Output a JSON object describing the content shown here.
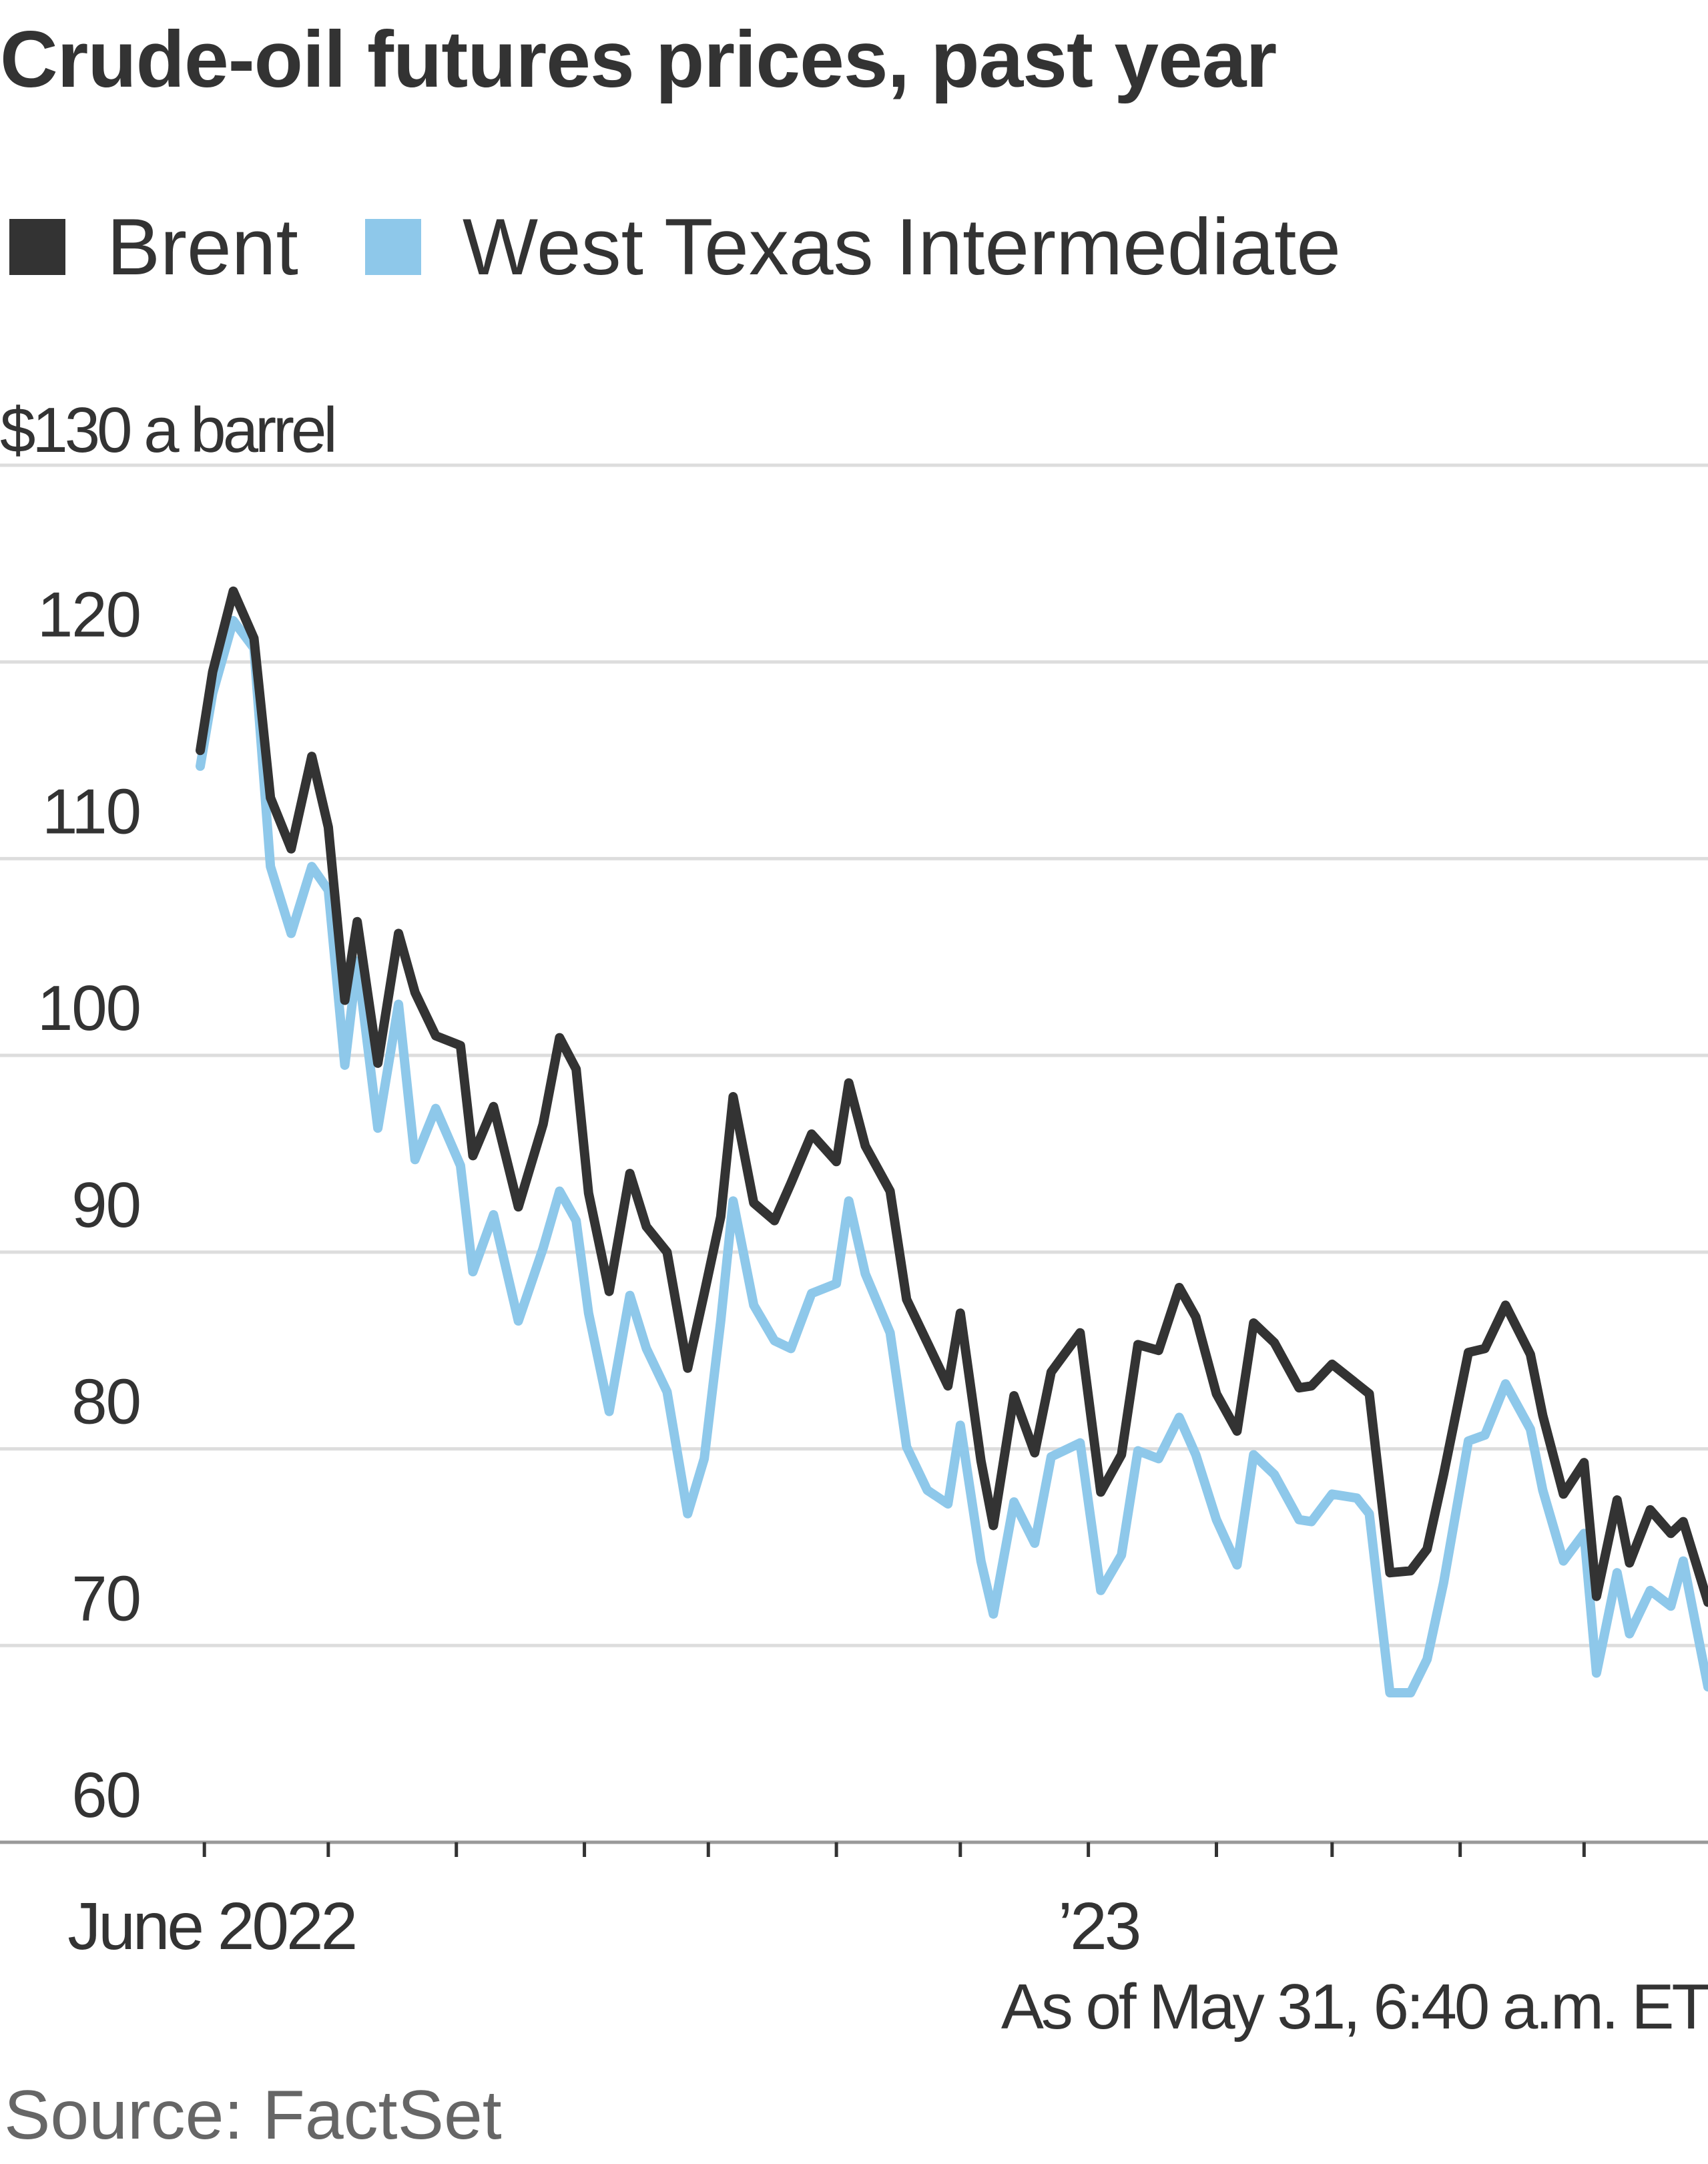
{
  "chart_data": {
    "type": "line",
    "title": "Crude-oil futures prices, past year",
    "ylabel": "$130 a barrel",
    "ylim": [
      60,
      130
    ],
    "yticks": [
      60,
      70,
      80,
      90,
      100,
      110,
      120,
      130
    ],
    "ytick_labels": [
      "60",
      "70",
      "80",
      "90",
      "100",
      "110",
      "120",
      "$130 a barrel"
    ],
    "xlim": [
      "2022-05-31",
      "2023-05-31"
    ],
    "x_labels": [
      {
        "date": "2022-06-01",
        "label": "June 2022"
      },
      {
        "date": "2023-01-01",
        "label": "’23"
      }
    ],
    "month_ticks": [
      "2022-06-01",
      "2022-07-01",
      "2022-08-01",
      "2022-09-01",
      "2022-10-01",
      "2022-11-01",
      "2022-12-01",
      "2023-01-01",
      "2023-02-01",
      "2023-03-01",
      "2023-04-01",
      "2023-05-01"
    ],
    "grid": true,
    "legend_position": "top-left",
    "series": [
      {
        "name": "Brent",
        "color": "#333333",
        "points": [
          [
            "2022-05-31",
            115.5
          ],
          [
            "2022-06-03",
            119.5
          ],
          [
            "2022-06-08",
            123.6
          ],
          [
            "2022-06-13",
            121.2
          ],
          [
            "2022-06-17",
            113.1
          ],
          [
            "2022-06-22",
            110.5
          ],
          [
            "2022-06-27",
            115.2
          ],
          [
            "2022-07-01",
            111.6
          ],
          [
            "2022-07-05",
            102.8
          ],
          [
            "2022-07-08",
            106.8
          ],
          [
            "2022-07-13",
            99.6
          ],
          [
            "2022-07-18",
            106.2
          ],
          [
            "2022-07-22",
            103.2
          ],
          [
            "2022-07-27",
            101.0
          ],
          [
            "2022-08-02",
            100.5
          ],
          [
            "2022-08-05",
            94.9
          ],
          [
            "2022-08-10",
            97.4
          ],
          [
            "2022-08-16",
            92.3
          ],
          [
            "2022-08-22",
            96.5
          ],
          [
            "2022-08-26",
            100.9
          ],
          [
            "2022-08-30",
            99.3
          ],
          [
            "2022-09-02",
            93.0
          ],
          [
            "2022-09-07",
            88.0
          ],
          [
            "2022-09-12",
            94.0
          ],
          [
            "2022-09-16",
            91.3
          ],
          [
            "2022-09-21",
            90.0
          ],
          [
            "2022-09-26",
            84.1
          ],
          [
            "2022-09-30",
            87.9
          ],
          [
            "2022-10-04",
            91.8
          ],
          [
            "2022-10-07",
            97.9
          ],
          [
            "2022-10-12",
            92.5
          ],
          [
            "2022-10-17",
            91.6
          ],
          [
            "2022-10-21",
            93.5
          ],
          [
            "2022-10-26",
            96.0
          ],
          [
            "2022-11-01",
            94.6
          ],
          [
            "2022-11-04",
            98.6
          ],
          [
            "2022-11-08",
            95.4
          ],
          [
            "2022-11-14",
            93.1
          ],
          [
            "2022-11-18",
            87.6
          ],
          [
            "2022-11-23",
            85.4
          ],
          [
            "2022-11-28",
            83.2
          ],
          [
            "2022-12-01",
            86.9
          ],
          [
            "2022-12-06",
            79.4
          ],
          [
            "2022-12-09",
            76.1
          ],
          [
            "2022-12-14",
            82.7
          ],
          [
            "2022-12-19",
            79.8
          ],
          [
            "2022-12-23",
            83.9
          ],
          [
            "2022-12-30",
            85.9
          ],
          [
            "2023-01-04",
            77.8
          ],
          [
            "2023-01-09",
            79.7
          ],
          [
            "2023-01-13",
            85.3
          ],
          [
            "2023-01-18",
            85.0
          ],
          [
            "2023-01-23",
            88.2
          ],
          [
            "2023-01-27",
            86.7
          ],
          [
            "2023-02-01",
            82.8
          ],
          [
            "2023-02-06",
            80.9
          ],
          [
            "2023-02-10",
            86.4
          ],
          [
            "2023-02-15",
            85.4
          ],
          [
            "2023-02-21",
            83.1
          ],
          [
            "2023-02-24",
            83.2
          ],
          [
            "2023-03-01",
            84.3
          ],
          [
            "2023-03-07",
            83.3
          ],
          [
            "2023-03-10",
            82.8
          ],
          [
            "2023-03-15",
            73.7
          ],
          [
            "2023-03-20",
            73.8
          ],
          [
            "2023-03-24",
            74.9
          ],
          [
            "2023-03-28",
            78.7
          ],
          [
            "2023-04-03",
            84.9
          ],
          [
            "2023-04-07",
            85.1
          ],
          [
            "2023-04-12",
            87.3
          ],
          [
            "2023-04-18",
            84.8
          ],
          [
            "2023-04-21",
            81.7
          ],
          [
            "2023-04-26",
            77.7
          ],
          [
            "2023-05-01",
            79.3
          ],
          [
            "2023-05-04",
            72.5
          ],
          [
            "2023-05-09",
            77.4
          ],
          [
            "2023-05-12",
            74.2
          ],
          [
            "2023-05-17",
            76.9
          ],
          [
            "2023-05-22",
            75.7
          ],
          [
            "2023-05-25",
            76.3
          ],
          [
            "2023-05-31",
            72.2
          ]
        ]
      },
      {
        "name": "West Texas Intermediate",
        "color": "#8ec8ea",
        "points": [
          [
            "2022-05-31",
            114.7
          ],
          [
            "2022-06-03",
            118.4
          ],
          [
            "2022-06-08",
            122.1
          ],
          [
            "2022-06-13",
            120.7
          ],
          [
            "2022-06-17",
            109.6
          ],
          [
            "2022-06-22",
            106.2
          ],
          [
            "2022-06-27",
            109.6
          ],
          [
            "2022-07-01",
            108.4
          ],
          [
            "2022-07-05",
            99.5
          ],
          [
            "2022-07-08",
            104.8
          ],
          [
            "2022-07-13",
            96.3
          ],
          [
            "2022-07-18",
            102.6
          ],
          [
            "2022-07-22",
            94.7
          ],
          [
            "2022-07-27",
            97.3
          ],
          [
            "2022-08-02",
            94.4
          ],
          [
            "2022-08-05",
            89.0
          ],
          [
            "2022-08-10",
            91.9
          ],
          [
            "2022-08-16",
            86.5
          ],
          [
            "2022-08-22",
            90.2
          ],
          [
            "2022-08-26",
            93.1
          ],
          [
            "2022-08-30",
            91.6
          ],
          [
            "2022-09-02",
            86.9
          ],
          [
            "2022-09-07",
            81.9
          ],
          [
            "2022-09-12",
            87.8
          ],
          [
            "2022-09-16",
            85.1
          ],
          [
            "2022-09-21",
            82.9
          ],
          [
            "2022-09-26",
            76.7
          ],
          [
            "2022-09-30",
            79.5
          ],
          [
            "2022-10-04",
            86.5
          ],
          [
            "2022-10-07",
            92.6
          ],
          [
            "2022-10-12",
            87.3
          ],
          [
            "2022-10-17",
            85.5
          ],
          [
            "2022-10-21",
            85.1
          ],
          [
            "2022-10-26",
            87.9
          ],
          [
            "2022-11-01",
            88.4
          ],
          [
            "2022-11-04",
            92.6
          ],
          [
            "2022-11-08",
            88.9
          ],
          [
            "2022-11-14",
            85.9
          ],
          [
            "2022-11-18",
            80.1
          ],
          [
            "2022-11-23",
            77.9
          ],
          [
            "2022-11-28",
            77.2
          ],
          [
            "2022-12-01",
            81.2
          ],
          [
            "2022-12-06",
            74.3
          ],
          [
            "2022-12-09",
            71.6
          ],
          [
            "2022-12-14",
            77.3
          ],
          [
            "2022-12-19",
            75.2
          ],
          [
            "2022-12-23",
            79.6
          ],
          [
            "2022-12-30",
            80.3
          ],
          [
            "2023-01-04",
            72.8
          ],
          [
            "2023-01-09",
            74.6
          ],
          [
            "2023-01-13",
            79.9
          ],
          [
            "2023-01-18",
            79.5
          ],
          [
            "2023-01-23",
            81.6
          ],
          [
            "2023-01-27",
            79.7
          ],
          [
            "2023-02-01",
            76.4
          ],
          [
            "2023-02-06",
            74.1
          ],
          [
            "2023-02-10",
            79.7
          ],
          [
            "2023-02-15",
            78.7
          ],
          [
            "2023-02-21",
            76.4
          ],
          [
            "2023-02-24",
            76.3
          ],
          [
            "2023-03-01",
            77.7
          ],
          [
            "2023-03-07",
            77.5
          ],
          [
            "2023-03-10",
            76.7
          ],
          [
            "2023-03-15",
            67.6
          ],
          [
            "2023-03-20",
            67.6
          ],
          [
            "2023-03-24",
            69.3
          ],
          [
            "2023-03-28",
            73.2
          ],
          [
            "2023-04-03",
            80.4
          ],
          [
            "2023-04-07",
            80.7
          ],
          [
            "2023-04-12",
            83.3
          ],
          [
            "2023-04-18",
            81.0
          ],
          [
            "2023-04-21",
            77.9
          ],
          [
            "2023-04-26",
            74.3
          ],
          [
            "2023-05-01",
            75.7
          ],
          [
            "2023-05-04",
            68.6
          ],
          [
            "2023-05-09",
            73.7
          ],
          [
            "2023-05-12",
            70.6
          ],
          [
            "2023-05-17",
            72.8
          ],
          [
            "2023-05-22",
            72.0
          ],
          [
            "2023-05-25",
            74.3
          ],
          [
            "2023-05-31",
            67.9
          ]
        ]
      }
    ],
    "annotation": "As of May 31, 6:40 a.m. ET",
    "source": "Source: FactSet"
  }
}
